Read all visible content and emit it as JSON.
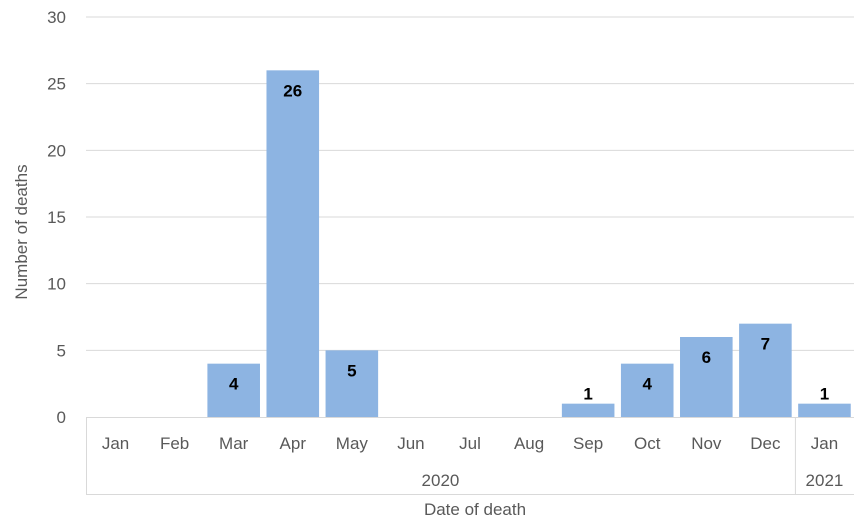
{
  "chart_data": {
    "type": "bar",
    "categories": [
      "Jan",
      "Feb",
      "Mar",
      "Apr",
      "May",
      "Jun",
      "Jul",
      "Aug",
      "Sep",
      "Oct",
      "Nov",
      "Dec",
      "Jan"
    ],
    "year_groups": [
      {
        "label": "2020",
        "span": 12
      },
      {
        "label": "2021",
        "span": 1
      }
    ],
    "values": [
      0,
      0,
      4,
      26,
      5,
      0,
      0,
      0,
      1,
      4,
      6,
      7,
      1
    ],
    "data_labels": [
      "",
      "",
      "4",
      "26",
      "5",
      "",
      "",
      "",
      "1",
      "4",
      "6",
      "7",
      "1"
    ],
    "xlabel": "Date of death",
    "ylabel": "Number of deaths",
    "ylim": [
      0,
      30
    ],
    "yticks": [
      "0",
      "5",
      "10",
      "15",
      "20",
      "25",
      "30"
    ],
    "grid": true,
    "bar_color": "#8DB4E2",
    "grid_color": "#D9D9D9",
    "text_color": "#595959"
  }
}
